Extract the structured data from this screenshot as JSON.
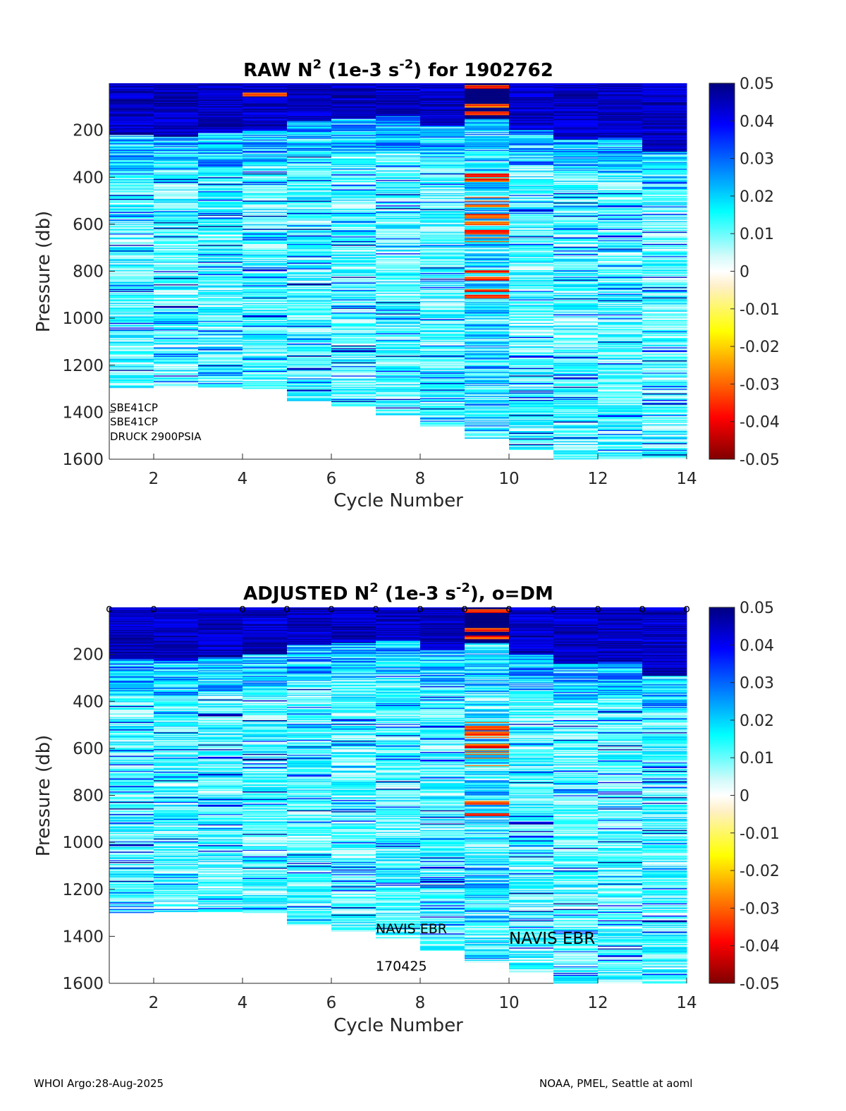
{
  "chart_data": [
    {
      "type": "heatmap",
      "title_parts": {
        "prefix": "RAW N",
        "sup1": "2",
        "mid": " (1e-3 s",
        "sup2": "-2",
        "suffix": ") for 1902762"
      },
      "xlabel": "Cycle Number",
      "ylabel": "Pressure (db)",
      "xlim": [
        1,
        14
      ],
      "ylim": [
        1600,
        0
      ],
      "xticks": [
        "2",
        "4",
        "6",
        "8",
        "10",
        "12",
        "14"
      ],
      "xtick_values": [
        2,
        4,
        6,
        8,
        10,
        12,
        14
      ],
      "yticks": [
        "200",
        "400",
        "600",
        "800",
        "1000",
        "1200",
        "1400",
        "1600"
      ],
      "ytick_values": [
        200,
        400,
        600,
        800,
        1000,
        1200,
        1400,
        1600
      ],
      "clim": [
        -0.05,
        0.05
      ],
      "colorbar_ticks": [
        "0.05",
        "0.04",
        "0.03",
        "0.02",
        "0.01",
        "0",
        "-0.01",
        "-0.02",
        "-0.03",
        "-0.04",
        "-0.05"
      ],
      "colorbar_tick_values": [
        0.05,
        0.04,
        0.03,
        0.02,
        0.01,
        0,
        -0.01,
        -0.02,
        -0.03,
        -0.04,
        -0.05
      ],
      "annotations": [
        "SBE41CP",
        "SBE41CP",
        "DRUCK 2900PSIA"
      ],
      "columns": [
        {
          "cycle": 1,
          "max_pressure": 1300,
          "top_band_to": 220,
          "red_bands": []
        },
        {
          "cycle": 2,
          "max_pressure": 1295,
          "top_band_to": 225,
          "red_bands": []
        },
        {
          "cycle": 3,
          "max_pressure": 1295,
          "top_band_to": 210,
          "red_bands": []
        },
        {
          "cycle": 4,
          "max_pressure": 1300,
          "top_band_to": 200,
          "red_bands": [
            45
          ]
        },
        {
          "cycle": 5,
          "max_pressure": 1350,
          "top_band_to": 160,
          "red_bands": []
        },
        {
          "cycle": 6,
          "max_pressure": 1380,
          "top_band_to": 150,
          "red_bands": []
        },
        {
          "cycle": 7,
          "max_pressure": 1410,
          "top_band_to": 140,
          "red_bands": []
        },
        {
          "cycle": 8,
          "max_pressure": 1460,
          "top_band_to": 180,
          "red_bands": []
        },
        {
          "cycle": 9,
          "max_pressure": 1510,
          "top_band_to": 0,
          "red_bands": [
            15,
            95,
            125,
            390,
            410,
            520,
            560,
            595,
            630,
            800,
            830,
            880,
            905
          ],
          "anomalous": true
        },
        {
          "cycle": 10,
          "max_pressure": 1560,
          "top_band_to": 200,
          "red_bands": []
        },
        {
          "cycle": 11,
          "max_pressure": 1600,
          "top_band_to": 240,
          "red_bands": []
        },
        {
          "cycle": 12,
          "max_pressure": 1600,
          "top_band_to": 230,
          "red_bands": []
        },
        {
          "cycle": 13,
          "max_pressure": 1600,
          "top_band_to": 290,
          "red_bands": []
        }
      ]
    },
    {
      "type": "heatmap",
      "title_parts": {
        "prefix": "ADJUSTED N",
        "sup1": "2",
        "mid": " (1e-3 s",
        "sup2": "-2",
        "suffix": "), o=DM"
      },
      "xlabel": "Cycle Number",
      "ylabel": "Pressure (db)",
      "xlim": [
        1,
        14
      ],
      "ylim": [
        1600,
        0
      ],
      "xticks": [
        "2",
        "4",
        "6",
        "8",
        "10",
        "12",
        "14"
      ],
      "xtick_values": [
        2,
        4,
        6,
        8,
        10,
        12,
        14
      ],
      "yticks": [
        "200",
        "400",
        "600",
        "800",
        "1000",
        "1200",
        "1400",
        "1600"
      ],
      "ytick_values": [
        200,
        400,
        600,
        800,
        1000,
        1200,
        1400,
        1600
      ],
      "clim": [
        -0.05,
        0.05
      ],
      "colorbar_ticks": [
        "0.05",
        "0.04",
        "0.03",
        "0.02",
        "0.01",
        "0",
        "-0.01",
        "-0.02",
        "-0.03",
        "-0.04",
        "-0.05"
      ],
      "colorbar_tick_values": [
        0.05,
        0.04,
        0.03,
        0.02,
        0.01,
        0,
        -0.01,
        -0.02,
        -0.03,
        -0.04,
        -0.05
      ],
      "dm_marker": "o",
      "dm_cycles": [
        1,
        2,
        4,
        5,
        6,
        7,
        8,
        9,
        10,
        11,
        12,
        13,
        14
      ],
      "annotations": [
        "NAVIS EBR",
        "170425",
        "NAVIS EBR"
      ],
      "columns": [
        {
          "cycle": 1,
          "max_pressure": 1300,
          "top_band_to": 220,
          "red_bands": []
        },
        {
          "cycle": 2,
          "max_pressure": 1295,
          "top_band_to": 225,
          "red_bands": []
        },
        {
          "cycle": 3,
          "max_pressure": 1295,
          "top_band_to": 210,
          "red_bands": []
        },
        {
          "cycle": 4,
          "max_pressure": 1300,
          "top_band_to": 200,
          "red_bands": []
        },
        {
          "cycle": 5,
          "max_pressure": 1350,
          "top_band_to": 160,
          "red_bands": []
        },
        {
          "cycle": 6,
          "max_pressure": 1380,
          "top_band_to": 150,
          "red_bands": []
        },
        {
          "cycle": 7,
          "max_pressure": 1410,
          "top_band_to": 140,
          "red_bands": []
        },
        {
          "cycle": 8,
          "max_pressure": 1460,
          "top_band_to": 180,
          "red_bands": []
        },
        {
          "cycle": 9,
          "max_pressure": 1510,
          "top_band_to": 0,
          "red_bands": [
            15,
            95,
            125,
            515,
            540,
            590,
            830,
            880
          ],
          "anomalous": true
        },
        {
          "cycle": 10,
          "max_pressure": 1560,
          "top_band_to": 200,
          "red_bands": []
        },
        {
          "cycle": 11,
          "max_pressure": 1600,
          "top_band_to": 240,
          "red_bands": []
        },
        {
          "cycle": 12,
          "max_pressure": 1600,
          "top_band_to": 230,
          "red_bands": []
        },
        {
          "cycle": 13,
          "max_pressure": 1600,
          "top_band_to": 290,
          "red_bands": []
        }
      ]
    }
  ],
  "footer": {
    "left": "WHOI Argo:28-Aug-2025",
    "right": "NOAA, PMEL, Seattle at aoml"
  }
}
